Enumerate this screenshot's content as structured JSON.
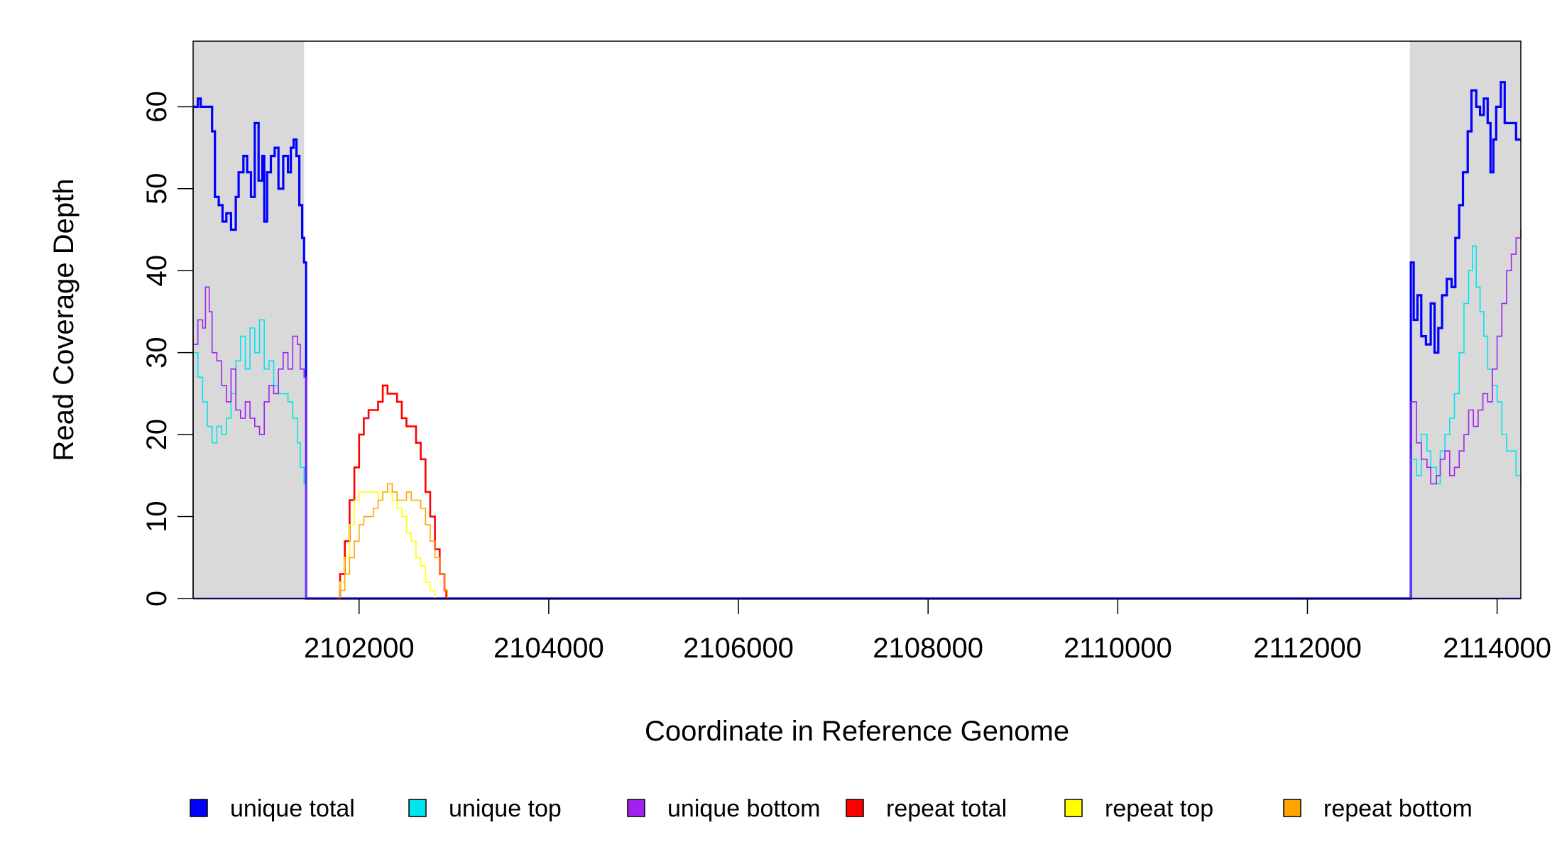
{
  "chart_data": {
    "type": "line",
    "title": "",
    "xlabel": "Coordinate in Reference Genome",
    "ylabel": "Read Coverage Depth",
    "xlim": [
      2100250,
      2114250
    ],
    "ylim": [
      0,
      68
    ],
    "x_ticks": [
      2102000,
      2104000,
      2106000,
      2108000,
      2110000,
      2112000,
      2114000
    ],
    "x_tick_labels": [
      "2102000",
      "2104000",
      "2106000",
      "2108000",
      "2110000",
      "2112000",
      "2114000"
    ],
    "y_ticks": [
      0,
      10,
      20,
      30,
      40,
      50,
      60
    ],
    "y_tick_labels": [
      "0",
      "10",
      "20",
      "30",
      "40",
      "50",
      "60"
    ],
    "grid": false,
    "legend_position": "bottom",
    "shaded_regions": [
      {
        "x0": 2100250,
        "x1": 2101420,
        "color": "#d9d9d9"
      },
      {
        "x0": 2113080,
        "x1": 2114250,
        "color": "#d9d9d9"
      }
    ],
    "legend": [
      {
        "label": "unique total",
        "color": "#0000ff"
      },
      {
        "label": "unique top",
        "color": "#00e5ee"
      },
      {
        "label": "unique bottom",
        "color": "#a020f0"
      },
      {
        "label": "repeat total",
        "color": "#ff0000"
      },
      {
        "label": "repeat top",
        "color": "#ffff00"
      },
      {
        "label": "repeat bottom",
        "color": "#ffa500"
      }
    ],
    "series": [
      {
        "name": "unique total",
        "color": "#0000ff",
        "width": 3.2,
        "points": [
          [
            2100250,
            60
          ],
          [
            2100300,
            61
          ],
          [
            2100330,
            60
          ],
          [
            2100450,
            57
          ],
          [
            2100480,
            49
          ],
          [
            2100520,
            48
          ],
          [
            2100560,
            46
          ],
          [
            2100600,
            47
          ],
          [
            2100650,
            45
          ],
          [
            2100700,
            49
          ],
          [
            2100730,
            52
          ],
          [
            2100780,
            54
          ],
          [
            2100820,
            52
          ],
          [
            2100860,
            49
          ],
          [
            2100900,
            58
          ],
          [
            2100940,
            51
          ],
          [
            2100980,
            54
          ],
          [
            2101000,
            46
          ],
          [
            2101030,
            52
          ],
          [
            2101070,
            54
          ],
          [
            2101110,
            55
          ],
          [
            2101150,
            50
          ],
          [
            2101200,
            54
          ],
          [
            2101250,
            52
          ],
          [
            2101280,
            55
          ],
          [
            2101310,
            56
          ],
          [
            2101340,
            54
          ],
          [
            2101370,
            48
          ],
          [
            2101400,
            44
          ],
          [
            2101420,
            41
          ],
          [
            2101440,
            0
          ],
          [
            2113080,
            0
          ],
          [
            2113090,
            41
          ],
          [
            2113120,
            34
          ],
          [
            2113160,
            37
          ],
          [
            2113200,
            32
          ],
          [
            2113250,
            31
          ],
          [
            2113300,
            36
          ],
          [
            2113340,
            30
          ],
          [
            2113380,
            33
          ],
          [
            2113420,
            37
          ],
          [
            2113470,
            39
          ],
          [
            2113520,
            38
          ],
          [
            2113560,
            44
          ],
          [
            2113600,
            48
          ],
          [
            2113640,
            52
          ],
          [
            2113690,
            57
          ],
          [
            2113730,
            62
          ],
          [
            2113780,
            60
          ],
          [
            2113820,
            59
          ],
          [
            2113860,
            61
          ],
          [
            2113900,
            58
          ],
          [
            2113930,
            52
          ],
          [
            2113960,
            56
          ],
          [
            2113990,
            60
          ],
          [
            2114040,
            63
          ],
          [
            2114080,
            58
          ],
          [
            2114120,
            58
          ],
          [
            2114200,
            56
          ],
          [
            2114250,
            56
          ]
        ]
      },
      {
        "name": "unique top",
        "color": "#00e5ee",
        "width": 1.6,
        "points": [
          [
            2100250,
            30
          ],
          [
            2100300,
            27
          ],
          [
            2100350,
            24
          ],
          [
            2100400,
            21
          ],
          [
            2100450,
            19
          ],
          [
            2100500,
            21
          ],
          [
            2100550,
            20
          ],
          [
            2100600,
            22
          ],
          [
            2100650,
            25
          ],
          [
            2100700,
            29
          ],
          [
            2100750,
            32
          ],
          [
            2100800,
            28
          ],
          [
            2100850,
            33
          ],
          [
            2100900,
            30
          ],
          [
            2100950,
            34
          ],
          [
            2101000,
            28
          ],
          [
            2101050,
            29
          ],
          [
            2101100,
            26
          ],
          [
            2101150,
            25
          ],
          [
            2101200,
            25
          ],
          [
            2101250,
            24
          ],
          [
            2101300,
            22
          ],
          [
            2101350,
            19
          ],
          [
            2101380,
            16
          ],
          [
            2101420,
            14
          ],
          [
            2101440,
            0
          ],
          [
            2113080,
            0
          ],
          [
            2113090,
            17
          ],
          [
            2113150,
            15
          ],
          [
            2113200,
            20
          ],
          [
            2113260,
            18
          ],
          [
            2113300,
            16
          ],
          [
            2113360,
            14
          ],
          [
            2113400,
            18
          ],
          [
            2113450,
            20
          ],
          [
            2113500,
            22
          ],
          [
            2113550,
            25
          ],
          [
            2113600,
            30
          ],
          [
            2113650,
            36
          ],
          [
            2113700,
            40
          ],
          [
            2113740,
            43
          ],
          [
            2113780,
            38
          ],
          [
            2113820,
            35
          ],
          [
            2113860,
            32
          ],
          [
            2113900,
            28
          ],
          [
            2113950,
            26
          ],
          [
            2114000,
            24
          ],
          [
            2114050,
            20
          ],
          [
            2114100,
            18
          ],
          [
            2114200,
            15
          ],
          [
            2114250,
            14
          ]
        ]
      },
      {
        "name": "unique bottom",
        "color": "#a020f0",
        "width": 1.6,
        "points": [
          [
            2100250,
            31
          ],
          [
            2100300,
            34
          ],
          [
            2100350,
            33
          ],
          [
            2100380,
            38
          ],
          [
            2100420,
            35
          ],
          [
            2100450,
            30
          ],
          [
            2100500,
            29
          ],
          [
            2100550,
            26
          ],
          [
            2100600,
            24
          ],
          [
            2100650,
            28
          ],
          [
            2100700,
            23
          ],
          [
            2100750,
            22
          ],
          [
            2100800,
            24
          ],
          [
            2100850,
            22
          ],
          [
            2100900,
            21
          ],
          [
            2100950,
            20
          ],
          [
            2101000,
            24
          ],
          [
            2101050,
            26
          ],
          [
            2101100,
            25
          ],
          [
            2101150,
            28
          ],
          [
            2101200,
            30
          ],
          [
            2101250,
            28
          ],
          [
            2101300,
            32
          ],
          [
            2101350,
            31
          ],
          [
            2101380,
            28
          ],
          [
            2101420,
            27
          ],
          [
            2101440,
            0
          ],
          [
            2113080,
            0
          ],
          [
            2113090,
            24
          ],
          [
            2113150,
            19
          ],
          [
            2113200,
            17
          ],
          [
            2113260,
            16
          ],
          [
            2113300,
            14
          ],
          [
            2113360,
            15
          ],
          [
            2113400,
            17
          ],
          [
            2113450,
            18
          ],
          [
            2113500,
            15
          ],
          [
            2113550,
            16
          ],
          [
            2113600,
            18
          ],
          [
            2113650,
            20
          ],
          [
            2113700,
            23
          ],
          [
            2113750,
            21
          ],
          [
            2113800,
            23
          ],
          [
            2113850,
            25
          ],
          [
            2113900,
            24
          ],
          [
            2113950,
            28
          ],
          [
            2114000,
            32
          ],
          [
            2114050,
            36
          ],
          [
            2114100,
            40
          ],
          [
            2114150,
            42
          ],
          [
            2114200,
            44
          ],
          [
            2114250,
            45
          ]
        ]
      },
      {
        "name": "repeat total",
        "color": "#ff0000",
        "width": 2.6,
        "points": [
          [
            2101760,
            0
          ],
          [
            2101800,
            3
          ],
          [
            2101850,
            7
          ],
          [
            2101900,
            12
          ],
          [
            2101950,
            16
          ],
          [
            2102000,
            20
          ],
          [
            2102050,
            22
          ],
          [
            2102100,
            23
          ],
          [
            2102150,
            23
          ],
          [
            2102200,
            24
          ],
          [
            2102250,
            26
          ],
          [
            2102300,
            25
          ],
          [
            2102350,
            25
          ],
          [
            2102400,
            24
          ],
          [
            2102450,
            22
          ],
          [
            2102500,
            21
          ],
          [
            2102550,
            21
          ],
          [
            2102600,
            19
          ],
          [
            2102650,
            17
          ],
          [
            2102700,
            13
          ],
          [
            2102750,
            10
          ],
          [
            2102800,
            6
          ],
          [
            2102850,
            3
          ],
          [
            2102900,
            1
          ],
          [
            2102920,
            0
          ]
        ]
      },
      {
        "name": "repeat top",
        "color": "#ffff00",
        "width": 1.6,
        "points": [
          [
            2101760,
            0
          ],
          [
            2101800,
            2
          ],
          [
            2101850,
            5
          ],
          [
            2101900,
            9
          ],
          [
            2101950,
            12
          ],
          [
            2102000,
            13
          ],
          [
            2102050,
            13
          ],
          [
            2102100,
            13
          ],
          [
            2102150,
            13
          ],
          [
            2102200,
            12
          ],
          [
            2102250,
            13
          ],
          [
            2102300,
            13
          ],
          [
            2102350,
            12
          ],
          [
            2102400,
            11
          ],
          [
            2102450,
            10
          ],
          [
            2102500,
            8
          ],
          [
            2102550,
            7
          ],
          [
            2102600,
            5
          ],
          [
            2102650,
            4
          ],
          [
            2102700,
            2
          ],
          [
            2102750,
            1
          ],
          [
            2102800,
            0
          ]
        ]
      },
      {
        "name": "repeat bottom",
        "color": "#ffa500",
        "width": 1.6,
        "points": [
          [
            2101760,
            0
          ],
          [
            2101800,
            1
          ],
          [
            2101850,
            3
          ],
          [
            2101900,
            5
          ],
          [
            2101950,
            7
          ],
          [
            2102000,
            9
          ],
          [
            2102050,
            10
          ],
          [
            2102100,
            10
          ],
          [
            2102150,
            11
          ],
          [
            2102200,
            12
          ],
          [
            2102250,
            13
          ],
          [
            2102300,
            14
          ],
          [
            2102350,
            13
          ],
          [
            2102400,
            12
          ],
          [
            2102450,
            12
          ],
          [
            2102500,
            13
          ],
          [
            2102550,
            12
          ],
          [
            2102600,
            12
          ],
          [
            2102650,
            11
          ],
          [
            2102700,
            9
          ],
          [
            2102750,
            7
          ],
          [
            2102800,
            5
          ],
          [
            2102850,
            3
          ],
          [
            2102900,
            1
          ],
          [
            2102930,
            0
          ]
        ]
      }
    ]
  }
}
